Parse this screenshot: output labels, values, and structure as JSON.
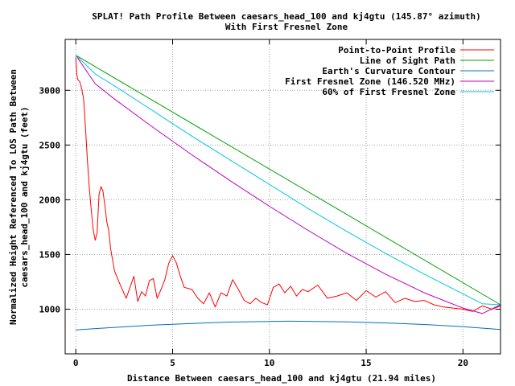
{
  "chart_data": {
    "type": "line",
    "title_line1": "SPLAT! Path Profile Between caesars_head_100 and kj4gtu (145.87° azimuth)",
    "title_line2": "With First Fresnel Zone",
    "xlabel": "Distance Between caesars_head_100 and kj4gtu (21.94 miles)",
    "ylabel_line1": "Normalized Height Referenced To LOS Path Between",
    "ylabel_line2": "caesars_head_100 and kj4gtu (feet)",
    "xlim": [
      -0.55,
      21.94
    ],
    "ylim": [
      592,
      3465
    ],
    "x_ticks": [
      0,
      5,
      10,
      15,
      20
    ],
    "y_ticks": [
      1000,
      1500,
      2000,
      2500,
      3000
    ],
    "grid": true,
    "legend_position": "top-right",
    "series": [
      {
        "name": "Point-to-Point Profile",
        "color": "#ff0000",
        "x": [
          0,
          0.05,
          0.1,
          0.2,
          0.3,
          0.4,
          0.5,
          0.6,
          0.7,
          0.8,
          0.9,
          1.0,
          1.1,
          1.2,
          1.3,
          1.4,
          1.5,
          1.6,
          1.7,
          1.8,
          1.9,
          2.0,
          2.2,
          2.4,
          2.6,
          2.8,
          3.0,
          3.2,
          3.4,
          3.6,
          3.8,
          4.0,
          4.2,
          4.4,
          4.6,
          4.8,
          5.0,
          5.2,
          5.4,
          5.6,
          5.8,
          6.0,
          6.3,
          6.6,
          6.9,
          7.2,
          7.5,
          7.8,
          8.1,
          8.4,
          8.7,
          9.0,
          9.3,
          9.6,
          9.9,
          10.2,
          10.5,
          10.8,
          11.1,
          11.4,
          11.7,
          12.0,
          12.5,
          13.0,
          13.5,
          14.0,
          14.5,
          15.0,
          15.5,
          16.0,
          16.5,
          17.0,
          17.5,
          18.0,
          18.5,
          19.0,
          19.5,
          20.0,
          20.5,
          21.0,
          21.5,
          21.94
        ],
        "y": [
          3300,
          3150,
          3100,
          3080,
          3020,
          2920,
          2650,
          2350,
          2100,
          1900,
          1720,
          1630,
          1700,
          2050,
          2120,
          2080,
          1950,
          1800,
          1720,
          1550,
          1450,
          1350,
          1260,
          1180,
          1100,
          1200,
          1300,
          1070,
          1160,
          1120,
          1260,
          1280,
          1100,
          1180,
          1270,
          1420,
          1490,
          1420,
          1300,
          1200,
          1190,
          1180,
          1100,
          1050,
          1150,
          1020,
          1150,
          1120,
          1270,
          1180,
          1080,
          1050,
          1100,
          1060,
          1040,
          1200,
          1230,
          1150,
          1210,
          1120,
          1180,
          1160,
          1220,
          1100,
          1120,
          1150,
          1080,
          1170,
          1110,
          1160,
          1060,
          1100,
          1070,
          1080,
          1040,
          1020,
          1010,
          1000,
          980,
          1030,
          1000,
          1030
        ]
      },
      {
        "name": "Line of Sight Path",
        "color": "#00a000",
        "x": [
          0,
          21.94
        ],
        "y": [
          3320,
          1040
        ]
      },
      {
        "name": "Earth's Curvature Contour",
        "color": "#0070c0",
        "x": [
          0,
          2,
          4,
          6,
          8,
          10,
          11,
          12,
          14,
          16,
          18,
          20,
          21.94
        ],
        "y": [
          810,
          834,
          855,
          870,
          882,
          888,
          890,
          889,
          884,
          874,
          860,
          840,
          815
        ]
      },
      {
        "name": "First Fresnel Zone (146.520 MHz)",
        "color": "#c000c0",
        "x": [
          0,
          1,
          2,
          4,
          6,
          8,
          10,
          12,
          14,
          16,
          18,
          20,
          21,
          21.94
        ],
        "y": [
          3320,
          3060,
          2920,
          2660,
          2410,
          2170,
          1940,
          1720,
          1510,
          1320,
          1150,
          1010,
          960,
          1040
        ]
      },
      {
        "name": "60% of First Fresnel Zone",
        "color": "#00c8e0",
        "x": [
          0,
          1,
          2,
          4,
          6,
          8,
          10,
          12,
          14,
          16,
          18,
          20,
          21,
          21.94
        ],
        "y": [
          3320,
          3150,
          3040,
          2810,
          2580,
          2360,
          2140,
          1920,
          1710,
          1510,
          1320,
          1140,
          1050,
          1040
        ]
      }
    ]
  }
}
